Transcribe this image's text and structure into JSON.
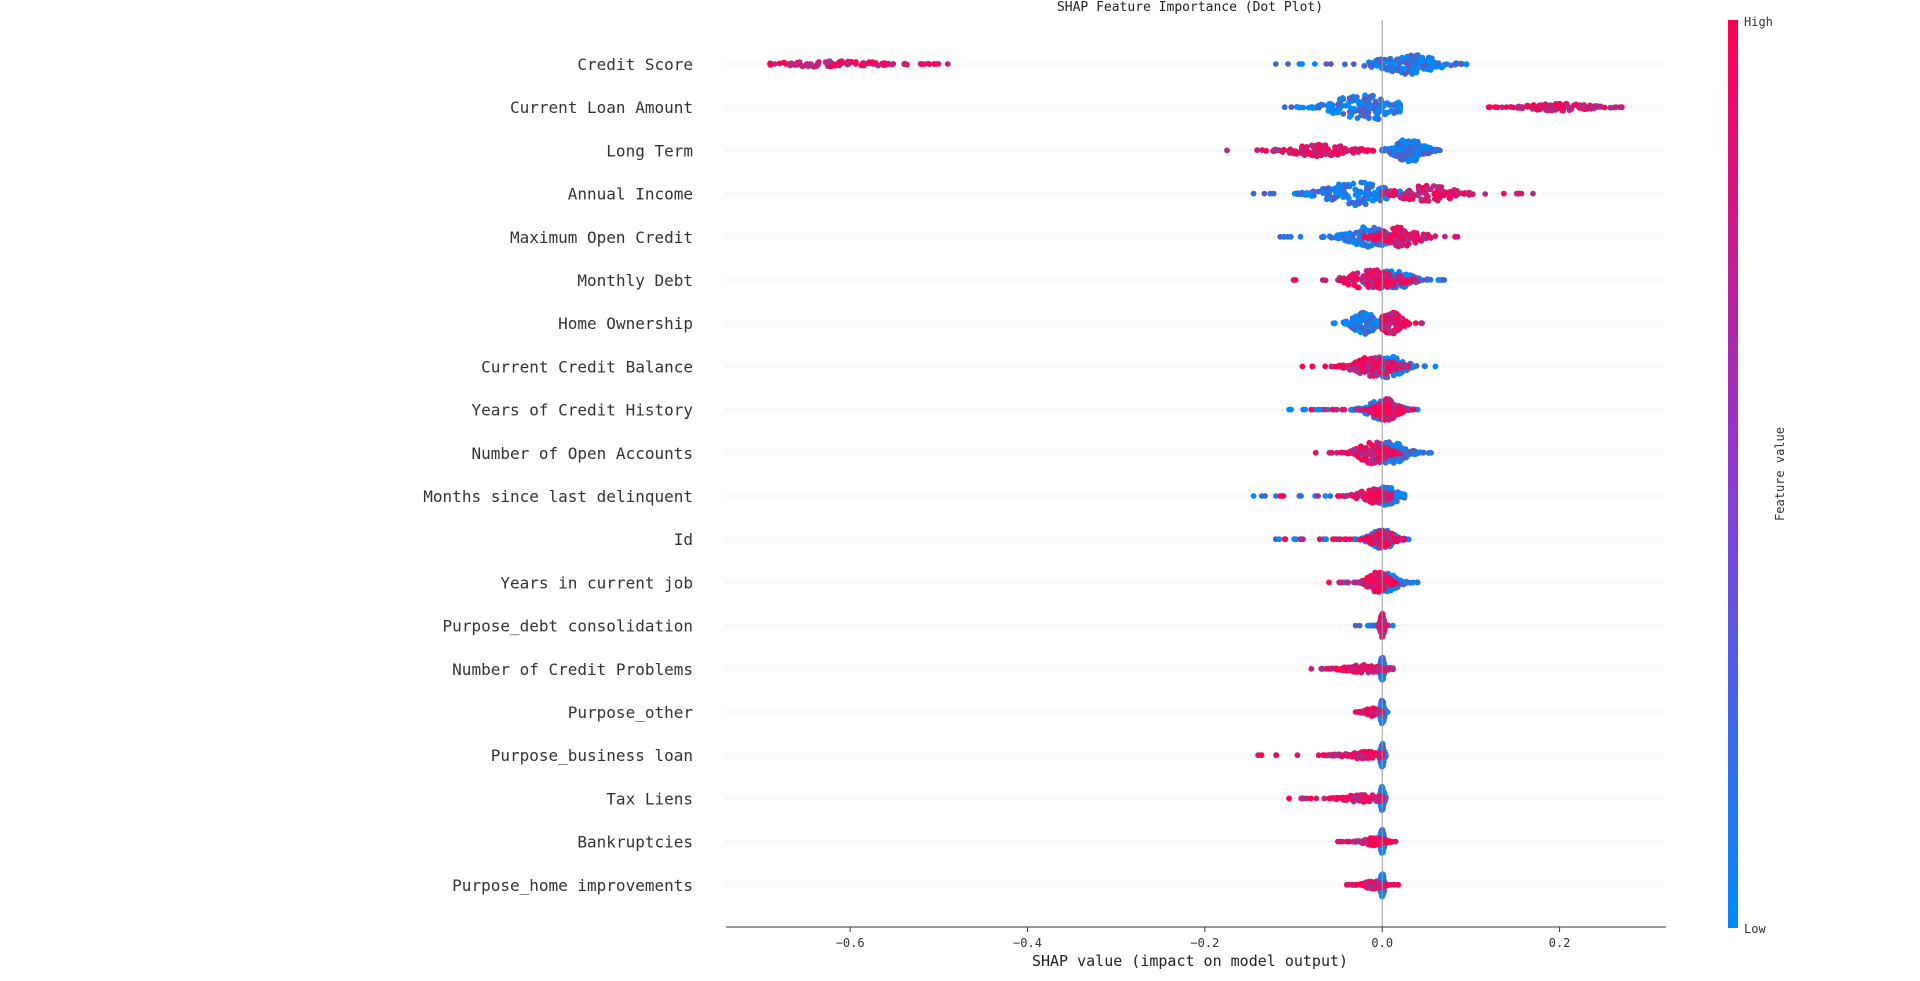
{
  "chart_data": {
    "type": "scatter",
    "subtype": "shap-beeswarm",
    "title": "SHAP Feature Importance (Dot Plot)",
    "xlabel": "SHAP value (impact on model output)",
    "xlim": [
      -0.74,
      0.32
    ],
    "xticks": [
      -0.6,
      -0.4,
      -0.2,
      0.0,
      0.2
    ],
    "xtick_labels": [
      "−0.6",
      "−0.4",
      "−0.2",
      "0.0",
      "0.2"
    ],
    "colorbar": {
      "label": "Feature value",
      "high": "High",
      "low": "Low",
      "high_color": "#ff0052",
      "low_color": "#008bfb"
    },
    "features": [
      {
        "name": "Credit Score",
        "pos": {
          "min": -0.12,
          "max": 0.095,
          "center": 0.03,
          "spread": 0.03,
          "width": 10
        },
        "neg": {
          "min": -0.69,
          "max": -0.49,
          "center": -0.62,
          "spread": 0.05,
          "width": 3
        }
      },
      {
        "name": "Current Loan Amount",
        "pos": {
          "min": -0.11,
          "max": 0.02,
          "center": -0.02,
          "spread": 0.03,
          "width": 14
        },
        "neg": {
          "min": 0.12,
          "max": 0.27,
          "center": 0.2,
          "spread": 0.03,
          "width": 4
        }
      },
      {
        "name": "Long Term",
        "pos": {
          "min": 0.0,
          "max": 0.065,
          "center": 0.03,
          "spread": 0.015,
          "width": 12
        },
        "neg": {
          "min": -0.175,
          "max": -0.01,
          "center": -0.07,
          "spread": 0.03,
          "width": 6
        }
      },
      {
        "name": "Annual Income",
        "pos": {
          "min": -0.145,
          "max": 0.02,
          "center": -0.03,
          "spread": 0.03,
          "width": 12
        },
        "neg": {
          "min": 0.0,
          "max": 0.17,
          "center": 0.05,
          "spread": 0.03,
          "width": 8
        }
      },
      {
        "name": "Maximum Open Credit",
        "pos": {
          "min": -0.115,
          "max": 0.04,
          "center": -0.01,
          "spread": 0.025,
          "width": 11
        },
        "neg": {
          "min": -0.02,
          "max": 0.085,
          "center": 0.02,
          "spread": 0.02,
          "width": 10
        }
      },
      {
        "name": "Monthly Debt",
        "pos": {
          "min": -0.05,
          "max": 0.07,
          "center": 0.01,
          "spread": 0.02,
          "width": 10
        },
        "neg": {
          "min": -0.1,
          "max": 0.04,
          "center": -0.01,
          "spread": 0.025,
          "width": 10
        }
      },
      {
        "name": "Home Ownership",
        "pos": {
          "min": -0.055,
          "max": 0.0,
          "center": -0.02,
          "spread": 0.012,
          "width": 11
        },
        "neg": {
          "min": 0.0,
          "max": 0.045,
          "center": 0.01,
          "spread": 0.01,
          "width": 12
        }
      },
      {
        "name": "Current Credit Balance",
        "pos": {
          "min": -0.05,
          "max": 0.06,
          "center": 0.005,
          "spread": 0.018,
          "width": 11
        },
        "neg": {
          "min": -0.09,
          "max": 0.03,
          "center": -0.01,
          "spread": 0.02,
          "width": 10
        }
      },
      {
        "name": "Years of Credit History",
        "pos": {
          "min": -0.105,
          "max": 0.04,
          "center": 0.0,
          "spread": 0.015,
          "width": 11
        },
        "neg": {
          "min": -0.08,
          "max": 0.035,
          "center": 0.005,
          "spread": 0.012,
          "width": 11
        }
      },
      {
        "name": "Number of Open Accounts",
        "pos": {
          "min": -0.03,
          "max": 0.055,
          "center": 0.01,
          "spread": 0.015,
          "width": 11
        },
        "neg": {
          "min": -0.075,
          "max": 0.02,
          "center": -0.01,
          "spread": 0.015,
          "width": 11
        }
      },
      {
        "name": "Months since last delinquent",
        "pos": {
          "min": -0.145,
          "max": 0.025,
          "center": 0.005,
          "spread": 0.012,
          "width": 10
        },
        "neg": {
          "min": -0.115,
          "max": 0.01,
          "center": -0.01,
          "spread": 0.015,
          "width": 7
        }
      },
      {
        "name": "Id",
        "pos": {
          "min": -0.12,
          "max": 0.03,
          "center": 0.0,
          "spread": 0.012,
          "width": 10
        },
        "neg": {
          "min": -0.11,
          "max": 0.025,
          "center": 0.0,
          "spread": 0.012,
          "width": 9
        }
      },
      {
        "name": "Years in current job",
        "pos": {
          "min": -0.045,
          "max": 0.04,
          "center": 0.005,
          "spread": 0.012,
          "width": 9
        },
        "neg": {
          "min": -0.06,
          "max": 0.015,
          "center": -0.005,
          "spread": 0.01,
          "width": 11
        }
      },
      {
        "name": "Purpose_debt consolidation",
        "pos": {
          "min": -0.03,
          "max": 0.012,
          "center": 0.0,
          "spread": 0.003,
          "width": 4
        },
        "neg": {
          "min": -0.005,
          "max": 0.005,
          "center": 0.0,
          "spread": 0.002,
          "width": 12
        }
      },
      {
        "name": "Number of Credit Problems",
        "pos": {
          "min": -0.005,
          "max": 0.005,
          "center": 0.0,
          "spread": 0.002,
          "width": 12
        },
        "neg": {
          "min": -0.08,
          "max": 0.012,
          "center": -0.02,
          "spread": 0.02,
          "width": 4
        }
      },
      {
        "name": "Purpose_other",
        "pos": {
          "min": -0.005,
          "max": 0.006,
          "center": 0.0,
          "spread": 0.002,
          "width": 12
        },
        "neg": {
          "min": -0.03,
          "max": 0.0,
          "center": -0.012,
          "spread": 0.006,
          "width": 4
        }
      },
      {
        "name": "Purpose_business loan",
        "pos": {
          "min": -0.004,
          "max": 0.004,
          "center": 0.0,
          "spread": 0.002,
          "width": 12
        },
        "neg": {
          "min": -0.14,
          "max": 0.0,
          "center": -0.02,
          "spread": 0.02,
          "width": 4
        }
      },
      {
        "name": "Tax Liens",
        "pos": {
          "min": -0.004,
          "max": 0.004,
          "center": 0.0,
          "spread": 0.002,
          "width": 12
        },
        "neg": {
          "min": -0.105,
          "max": 0.0,
          "center": -0.02,
          "spread": 0.02,
          "width": 4
        }
      },
      {
        "name": "Bankruptcies",
        "pos": {
          "min": -0.005,
          "max": 0.005,
          "center": 0.0,
          "spread": 0.002,
          "width": 12
        },
        "neg": {
          "min": -0.05,
          "max": 0.015,
          "center": -0.01,
          "spread": 0.01,
          "width": 4
        }
      },
      {
        "name": "Purpose_home improvements",
        "pos": {
          "min": -0.004,
          "max": 0.004,
          "center": 0.0,
          "spread": 0.002,
          "width": 12
        },
        "neg": {
          "min": -0.04,
          "max": 0.018,
          "center": -0.01,
          "spread": 0.01,
          "width": 4
        }
      }
    ]
  }
}
